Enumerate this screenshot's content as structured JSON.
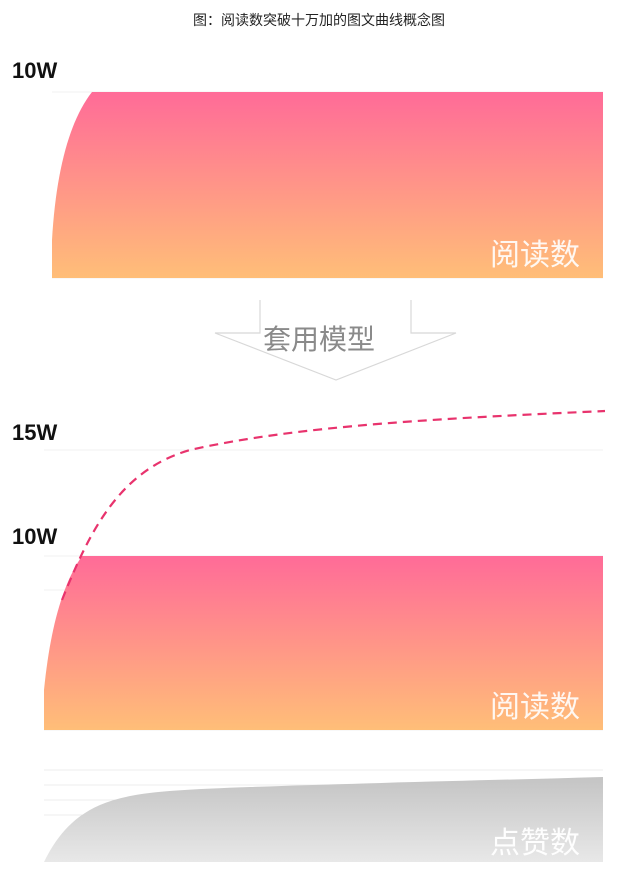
{
  "caption": "图：阅读数突破十万加的图文曲线概念图",
  "top_panel": {
    "y_label": "10W",
    "area_label": "阅读数"
  },
  "transition": {
    "label": "套用模型"
  },
  "bottom_panel": {
    "y_label_upper": "15W",
    "y_label_lower": "10W",
    "area_label": "阅读数"
  },
  "likes_panel": {
    "area_label": "点赞数"
  },
  "colors": {
    "gradient_top": "#ff6b98",
    "gradient_bottom": "#ffbe78",
    "dashed_curve": "#e8336d",
    "likes_fill": "#cfcfcf"
  }
}
